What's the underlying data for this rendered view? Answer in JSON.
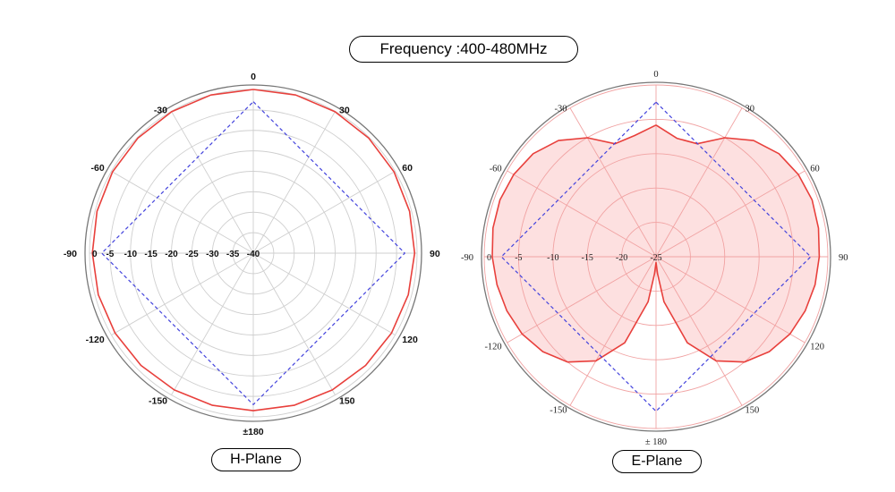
{
  "title": "Frequency :400-480MHz",
  "colors": {
    "measured": "#e8403c",
    "reference": "#4444dd",
    "grid_h": "#cfcfcf",
    "grid_e": "#f1a3a3",
    "fill_e": "#fde0e0"
  },
  "chart_data": [
    {
      "type": "polar",
      "title": "H-Plane",
      "angle_labels": [
        "0",
        "30",
        "60",
        "90",
        "120",
        "150",
        "±180",
        "-150",
        "-120",
        "-90",
        "-60",
        "-30"
      ],
      "radial_labels": [
        "0",
        "-5",
        "-10",
        "-15",
        "-20",
        "-25",
        "-30",
        "-35",
        "-40"
      ],
      "rlim": [
        -40,
        0
      ],
      "series": [
        {
          "style": "solid-red",
          "angles": [
            0,
            15,
            30,
            45,
            60,
            75,
            90,
            105,
            120,
            135,
            150,
            165,
            180,
            195,
            210,
            225,
            240,
            255,
            270,
            285,
            300,
            315,
            330,
            345,
            360
          ],
          "values": [
            0,
            0,
            -0.1,
            -0.2,
            -0.3,
            -0.5,
            -0.6,
            -0.8,
            -1.0,
            -1.2,
            -1.4,
            -1.5,
            -1.5,
            -1.5,
            -1.4,
            -1.2,
            -1.0,
            -0.8,
            -0.7,
            -0.5,
            -0.3,
            -0.2,
            -0.1,
            0,
            0
          ]
        },
        {
          "style": "dashed-blue",
          "angles": [
            0,
            90,
            180,
            270,
            360
          ],
          "values": [
            -3,
            -3,
            -3,
            -3,
            -3
          ]
        }
      ]
    },
    {
      "type": "polar",
      "title": "E-Plane",
      "angle_labels": [
        "0",
        "30",
        "60",
        "90",
        "120",
        "150",
        "± 180",
        "-150",
        "-120",
        "-90",
        "-60",
        "-30"
      ],
      "radial_labels": [
        "0",
        "-5",
        "-10",
        "-15",
        "-20",
        "-25"
      ],
      "rlim": [
        -30,
        0
      ],
      "series": [
        {
          "style": "solid-red-filled",
          "angles": [
            0,
            10,
            20,
            30,
            40,
            50,
            60,
            70,
            80,
            90,
            100,
            110,
            120,
            130,
            140,
            150,
            160,
            170,
            175,
            180,
            185,
            190,
            200,
            210,
            220,
            230,
            240,
            250,
            260,
            270,
            280,
            290,
            300,
            310,
            320,
            330,
            340,
            350,
            360
          ],
          "values": [
            -7,
            -9,
            -9,
            -6,
            -3.5,
            -2,
            -1.3,
            -1,
            -1.2,
            -1.5,
            -1.8,
            -2.3,
            -3,
            -4.2,
            -6,
            -9,
            -14,
            -22,
            -27,
            -29,
            -27,
            -22,
            -14,
            -9,
            -6,
            -4.2,
            -3,
            -2.3,
            -1.8,
            -1.4,
            -1.1,
            -1,
            -1.3,
            -2,
            -3.5,
            -6,
            -9,
            -8.5,
            -7
          ]
        },
        {
          "style": "dashed-blue",
          "angles": [
            0,
            90,
            180,
            270,
            360
          ],
          "values": [
            -3,
            -3,
            -3,
            -3,
            -3
          ]
        }
      ]
    }
  ]
}
